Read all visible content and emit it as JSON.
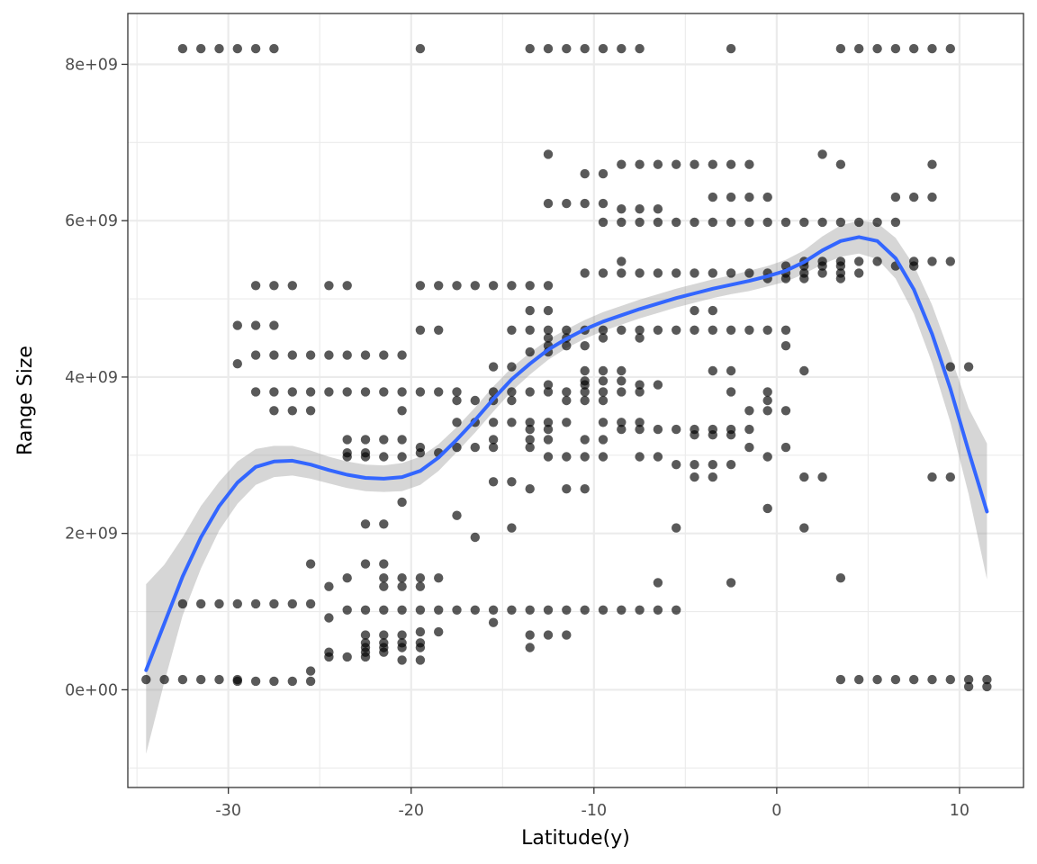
{
  "chart_data": {
    "type": "scatter",
    "title": "",
    "xlabel": "Latitude(y)",
    "ylabel": "Range Size",
    "xlim": [
      -35.5,
      13.5
    ],
    "ylim": [
      -1250000000.0,
      8650000000.0
    ],
    "x_ticks": [
      -30,
      -20,
      -10,
      0,
      10
    ],
    "x_tick_labels": [
      "-30",
      "-20",
      "-10",
      "0",
      "10"
    ],
    "y_ticks": [
      0,
      2000000000,
      4000000000,
      6000000000,
      8000000000
    ],
    "y_tick_labels": [
      "0e+00",
      "2e+09",
      "4e+09",
      "6e+09",
      "8e+09"
    ],
    "x_minor_ticks": [
      -35,
      -25,
      -15,
      -5,
      5
    ],
    "y_minor_ticks": [
      -1000000000,
      1000000000,
      3000000000,
      5000000000,
      7000000000
    ],
    "grid": true,
    "legend": "none",
    "colors": {
      "points": "#000000",
      "smooth_line": "#3366ff",
      "ribbon": "#999999",
      "grid": "#ebebeb",
      "panel_border": "#333333"
    },
    "point_rows": [
      {
        "y": 8200000000.0,
        "x": [
          -32.5,
          -31.5,
          -30.5,
          -29.5,
          -28.5,
          -27.5,
          -19.5,
          -13.5,
          -12.5,
          -11.5,
          -10.5,
          -9.5,
          -8.5,
          -7.5,
          -2.5,
          3.5,
          4.5,
          5.5,
          6.5,
          7.5,
          8.5,
          9.5
        ]
      },
      {
        "y": 6850000000.0,
        "x": [
          -12.5,
          2.5
        ]
      },
      {
        "y": 6720000000.0,
        "x": [
          -8.5,
          -7.5,
          -6.5,
          -5.5,
          -4.5,
          -3.5,
          -2.5,
          -1.5,
          3.5,
          8.5
        ]
      },
      {
        "y": 6600000000.0,
        "x": [
          -10.5,
          -9.5
        ]
      },
      {
        "y": 6300000000.0,
        "x": [
          -3.5,
          -2.5,
          -1.5,
          -0.5,
          6.5,
          7.5,
          8.5
        ]
      },
      {
        "y": 6220000000.0,
        "x": [
          -12.5,
          -11.5,
          -10.5,
          -9.5
        ]
      },
      {
        "y": 6150000000.0,
        "x": [
          -8.5,
          -7.5,
          -6.5
        ]
      },
      {
        "y": 5980000000.0,
        "x": [
          -9.5,
          -8.5,
          -7.5,
          -6.5,
          -5.5,
          -4.5,
          -3.5,
          -2.5,
          -1.5,
          -0.5,
          0.5,
          1.5,
          2.5,
          3.5,
          4.5,
          5.5,
          6.5
        ]
      },
      {
        "y": 5480000000.0,
        "x": [
          -8.5,
          1.5,
          2.5,
          3.5,
          4.5,
          5.5,
          7.5,
          8.5,
          9.5
        ]
      },
      {
        "y": 5420000000.0,
        "x": [
          0.5,
          1.5,
          2.5,
          3.5,
          6.5,
          7.5
        ]
      },
      {
        "y": 5330000000.0,
        "x": [
          -10.5,
          -9.5,
          -8.5,
          -7.5,
          -6.5,
          -5.5,
          -4.5,
          -3.5,
          -2.5,
          -1.5,
          -0.5,
          0.5,
          1.5,
          2.5,
          3.5,
          4.5
        ]
      },
      {
        "y": 5260000000.0,
        "x": [
          -0.5,
          0.5,
          1.5,
          3.5
        ]
      },
      {
        "y": 5170000000.0,
        "x": [
          -28.5,
          -27.5,
          -26.5,
          -24.5,
          -23.5,
          -19.5,
          -18.5,
          -17.5,
          -16.5,
          -15.5,
          -14.5,
          -13.5,
          -12.5
        ]
      },
      {
        "y": 4850000000.0,
        "x": [
          -13.5,
          -12.5,
          -4.5,
          -3.5
        ]
      },
      {
        "y": 4660000000.0,
        "x": [
          -29.5,
          -28.5,
          -27.5
        ]
      },
      {
        "y": 4600000000.0,
        "x": [
          -19.5,
          -18.5,
          -14.5,
          -13.5,
          -12.5,
          -11.5,
          -10.5,
          -9.5,
          -8.5,
          -7.5,
          -6.5,
          -5.5,
          -4.5,
          -3.5,
          -2.5,
          -1.5,
          -0.5,
          0.5
        ]
      },
      {
        "y": 4500000000.0,
        "x": [
          -12.5,
          -11.5,
          -9.5,
          -7.5
        ]
      },
      {
        "y": 4400000000.0,
        "x": [
          -12.5,
          -11.5,
          -10.5,
          0.5
        ]
      },
      {
        "y": 4320000000.0,
        "x": [
          -13.5,
          -12.5
        ]
      },
      {
        "y": 4280000000.0,
        "x": [
          -28.5,
          -27.5,
          -26.5,
          -25.5,
          -24.5,
          -23.5,
          -22.5,
          -21.5,
          -20.5
        ]
      },
      {
        "y": 4170000000.0,
        "x": [
          -29.5
        ]
      },
      {
        "y": 4130000000.0,
        "x": [
          -15.5,
          -14.5,
          9.5,
          10.5
        ]
      },
      {
        "y": 4080000000.0,
        "x": [
          -10.5,
          -9.5,
          -8.5,
          -3.5,
          -2.5,
          1.5
        ]
      },
      {
        "y": 3950000000.0,
        "x": [
          -10.5,
          -9.5,
          -8.5
        ]
      },
      {
        "y": 3900000000.0,
        "x": [
          -12.5,
          -10.5,
          -7.5,
          -6.5
        ]
      },
      {
        "y": 3810000000.0,
        "x": [
          -28.5,
          -27.5,
          -26.5,
          -25.5,
          -24.5,
          -23.5,
          -22.5,
          -21.5,
          -20.5,
          -19.5,
          -18.5,
          -17.5,
          -15.5,
          -14.5,
          -13.5,
          -12.5,
          -11.5,
          -10.5,
          -9.5,
          -8.5,
          -7.5,
          -2.5,
          -0.5
        ]
      },
      {
        "y": 3700000000.0,
        "x": [
          -17.5,
          -16.5,
          -15.5,
          -14.5,
          -11.5,
          -10.5,
          -9.5,
          -0.5
        ]
      },
      {
        "y": 3570000000.0,
        "x": [
          -27.5,
          -26.5,
          -25.5,
          -20.5,
          -1.5,
          -0.5,
          0.5
        ]
      },
      {
        "y": 3420000000.0,
        "x": [
          -17.5,
          -16.5,
          -15.5,
          -14.5,
          -13.5,
          -12.5,
          -11.5,
          -9.5,
          -8.5,
          -7.5
        ]
      },
      {
        "y": 3330000000.0,
        "x": [
          -13.5,
          -12.5,
          -8.5,
          -7.5,
          -6.5,
          -5.5,
          -4.5,
          -3.5,
          -2.5,
          -1.5
        ]
      },
      {
        "y": 3260000000.0,
        "x": [
          -4.5,
          -3.5,
          -2.5
        ]
      },
      {
        "y": 3200000000.0,
        "x": [
          -23.5,
          -22.5,
          -21.5,
          -20.5,
          -15.5,
          -13.5,
          -12.5,
          -10.5,
          -9.5
        ]
      },
      {
        "y": 3100000000.0,
        "x": [
          -19.5,
          -17.5,
          -16.5,
          -15.5,
          -13.5,
          -1.5,
          0.5
        ]
      },
      {
        "y": 3030000000.0,
        "x": [
          -23.5,
          -22.5,
          -19.5,
          -18.5
        ]
      },
      {
        "y": 2980000000.0,
        "x": [
          -23.5,
          -22.5,
          -21.5,
          -20.5,
          -12.5,
          -11.5,
          -10.5,
          -9.5,
          -7.5,
          -6.5,
          -0.5
        ]
      },
      {
        "y": 2880000000.0,
        "x": [
          -5.5,
          -4.5,
          -3.5,
          -2.5
        ]
      },
      {
        "y": 2720000000.0,
        "x": [
          -4.5,
          -3.5,
          1.5,
          2.5,
          8.5,
          9.5
        ]
      },
      {
        "y": 2660000000.0,
        "x": [
          -15.5,
          -14.5
        ]
      },
      {
        "y": 2570000000.0,
        "x": [
          -13.5,
          -11.5,
          -10.5
        ]
      },
      {
        "y": 2400000000.0,
        "x": [
          -20.5
        ]
      },
      {
        "y": 2320000000.0,
        "x": [
          -0.5
        ]
      },
      {
        "y": 2230000000.0,
        "x": [
          -17.5
        ]
      },
      {
        "y": 2120000000.0,
        "x": [
          -22.5,
          -21.5
        ]
      },
      {
        "y": 2070000000.0,
        "x": [
          -14.5,
          -5.5,
          1.5
        ]
      },
      {
        "y": 1950000000.0,
        "x": [
          -16.5
        ]
      },
      {
        "y": 1610000000.0,
        "x": [
          -25.5,
          -22.5,
          -21.5
        ]
      },
      {
        "y": 1430000000.0,
        "x": [
          -23.5,
          -21.5,
          -20.5,
          -19.5,
          -18.5,
          3.5
        ]
      },
      {
        "y": 1370000000.0,
        "x": [
          -6.5,
          -2.5
        ]
      },
      {
        "y": 1320000000.0,
        "x": [
          -24.5,
          -21.5,
          -20.5,
          -19.5
        ]
      },
      {
        "y": 1100000000.0,
        "x": [
          -32.5,
          -31.5,
          -30.5,
          -29.5,
          -28.5,
          -27.5,
          -26.5,
          -25.5
        ]
      },
      {
        "y": 1020000000.0,
        "x": [
          -23.5,
          -22.5,
          -21.5,
          -20.5,
          -19.5,
          -18.5,
          -17.5,
          -16.5,
          -15.5,
          -14.5,
          -13.5,
          -12.5,
          -11.5,
          -10.5,
          -9.5,
          -8.5,
          -7.5,
          -6.5,
          -5.5
        ]
      },
      {
        "y": 920000000.0,
        "x": [
          -24.5
        ]
      },
      {
        "y": 860000000.0,
        "x": [
          -15.5
        ]
      },
      {
        "y": 740000000.0,
        "x": [
          -19.5,
          -18.5
        ]
      },
      {
        "y": 700000000.0,
        "x": [
          -22.5,
          -21.5,
          -20.5,
          -13.5,
          -12.5,
          -11.5
        ]
      },
      {
        "y": 600000000.0,
        "x": [
          -22.5,
          -21.5,
          -20.5,
          -19.5
        ]
      },
      {
        "y": 540000000.0,
        "x": [
          -22.5,
          -21.5,
          -20.5,
          -19.5,
          -13.5
        ]
      },
      {
        "y": 480000000.0,
        "x": [
          -24.5,
          -22.5,
          -21.5
        ]
      },
      {
        "y": 420000000.0,
        "x": [
          -24.5,
          -23.5,
          -22.5
        ]
      },
      {
        "y": 380000000.0,
        "x": [
          -20.5,
          -19.5
        ]
      },
      {
        "y": 240000000.0,
        "x": [
          -25.5
        ]
      },
      {
        "y": 130000000.0,
        "x": [
          -34.5,
          -33.5,
          -32.5,
          -31.5,
          -30.5,
          -29.5,
          3.5,
          4.5,
          5.5,
          6.5,
          7.5,
          8.5,
          9.5,
          10.5,
          11.5
        ]
      },
      {
        "y": 110000000.0,
        "x": [
          -29.5,
          -28.5,
          -27.5,
          -26.5,
          -25.5
        ]
      },
      {
        "y": 40000000.0,
        "x": [
          10.5,
          11.5
        ]
      }
    ],
    "smooth_curve": [
      [
        -34.5,
        250000000.0
      ],
      [
        -33.5,
        850000000.0
      ],
      [
        -32.5,
        1450000000.0
      ],
      [
        -31.5,
        1950000000.0
      ],
      [
        -30.5,
        2350000000.0
      ],
      [
        -29.5,
        2650000000.0
      ],
      [
        -28.5,
        2850000000.0
      ],
      [
        -27.5,
        2920000000.0
      ],
      [
        -26.5,
        2930000000.0
      ],
      [
        -25.5,
        2880000000.0
      ],
      [
        -24.5,
        2810000000.0
      ],
      [
        -23.5,
        2750000000.0
      ],
      [
        -22.5,
        2710000000.0
      ],
      [
        -21.5,
        2700000000.0
      ],
      [
        -20.5,
        2720000000.0
      ],
      [
        -19.5,
        2800000000.0
      ],
      [
        -18.5,
        2970000000.0
      ],
      [
        -17.5,
        3200000000.0
      ],
      [
        -16.5,
        3450000000.0
      ],
      [
        -15.5,
        3720000000.0
      ],
      [
        -14.5,
        3970000000.0
      ],
      [
        -13.5,
        4170000000.0
      ],
      [
        -12.5,
        4350000000.0
      ],
      [
        -11.5,
        4490000000.0
      ],
      [
        -10.5,
        4610000000.0
      ],
      [
        -9.5,
        4710000000.0
      ],
      [
        -8.5,
        4790000000.0
      ],
      [
        -7.5,
        4870000000.0
      ],
      [
        -6.5,
        4940000000.0
      ],
      [
        -5.5,
        5010000000.0
      ],
      [
        -4.5,
        5070000000.0
      ],
      [
        -3.5,
        5130000000.0
      ],
      [
        -2.5,
        5180000000.0
      ],
      [
        -1.5,
        5230000000.0
      ],
      [
        -0.5,
        5290000000.0
      ],
      [
        0.5,
        5360000000.0
      ],
      [
        1.5,
        5470000000.0
      ],
      [
        2.5,
        5620000000.0
      ],
      [
        3.5,
        5740000000.0
      ],
      [
        4.5,
        5790000000.0
      ],
      [
        5.5,
        5740000000.0
      ],
      [
        6.5,
        5520000000.0
      ],
      [
        7.5,
        5120000000.0
      ],
      [
        8.5,
        4550000000.0
      ],
      [
        9.5,
        3850000000.0
      ],
      [
        10.5,
        3050000000.0
      ],
      [
        11.5,
        2280000000.0
      ]
    ],
    "ribbon_upper": [
      [
        -34.5,
        1350000000.0
      ],
      [
        -33.5,
        1600000000.0
      ],
      [
        -32.5,
        1950000000.0
      ],
      [
        -31.5,
        2350000000.0
      ],
      [
        -30.5,
        2660000000.0
      ],
      [
        -29.5,
        2920000000.0
      ],
      [
        -28.5,
        3080000000.0
      ],
      [
        -27.5,
        3120000000.0
      ],
      [
        -26.5,
        3120000000.0
      ],
      [
        -25.5,
        3060000000.0
      ],
      [
        -24.5,
        2980000000.0
      ],
      [
        -23.5,
        2920000000.0
      ],
      [
        -22.5,
        2880000000.0
      ],
      [
        -21.5,
        2870000000.0
      ],
      [
        -20.5,
        2900000000.0
      ],
      [
        -19.5,
        2980000000.0
      ],
      [
        -18.5,
        3140000000.0
      ],
      [
        -17.5,
        3360000000.0
      ],
      [
        -16.5,
        3610000000.0
      ],
      [
        -15.5,
        3880000000.0
      ],
      [
        -14.5,
        4120000000.0
      ],
      [
        -13.5,
        4310000000.0
      ],
      [
        -12.5,
        4480000000.0
      ],
      [
        -11.5,
        4610000000.0
      ],
      [
        -10.5,
        4730000000.0
      ],
      [
        -9.5,
        4830000000.0
      ],
      [
        -8.5,
        4910000000.0
      ],
      [
        -7.5,
        4990000000.0
      ],
      [
        -6.5,
        5060000000.0
      ],
      [
        -5.5,
        5130000000.0
      ],
      [
        -4.5,
        5190000000.0
      ],
      [
        -3.5,
        5250000000.0
      ],
      [
        -2.5,
        5300000000.0
      ],
      [
        -1.5,
        5360000000.0
      ],
      [
        -0.5,
        5420000000.0
      ],
      [
        0.5,
        5500000000.0
      ],
      [
        1.5,
        5620000000.0
      ],
      [
        2.5,
        5800000000.0
      ],
      [
        3.5,
        5940000000.0
      ],
      [
        4.5,
        6000000000.0
      ],
      [
        5.5,
        5970000000.0
      ],
      [
        6.5,
        5780000000.0
      ],
      [
        7.5,
        5430000000.0
      ],
      [
        8.5,
        4920000000.0
      ],
      [
        9.5,
        4280000000.0
      ],
      [
        10.5,
        3600000000.0
      ],
      [
        11.5,
        3150000000.0
      ]
    ],
    "ribbon_lower": [
      [
        -34.5,
        -820000000.0
      ],
      [
        -33.5,
        100000000.0
      ],
      [
        -32.5,
        950000000.0
      ],
      [
        -31.5,
        1550000000.0
      ],
      [
        -30.5,
        2040000000.0
      ],
      [
        -29.5,
        2380000000.0
      ],
      [
        -28.5,
        2620000000.0
      ],
      [
        -27.5,
        2720000000.0
      ],
      [
        -26.5,
        2740000000.0
      ],
      [
        -25.5,
        2700000000.0
      ],
      [
        -24.5,
        2640000000.0
      ],
      [
        -23.5,
        2580000000.0
      ],
      [
        -22.5,
        2540000000.0
      ],
      [
        -21.5,
        2530000000.0
      ],
      [
        -20.5,
        2540000000.0
      ],
      [
        -19.5,
        2620000000.0
      ],
      [
        -18.5,
        2800000000.0
      ],
      [
        -17.5,
        3040000000.0
      ],
      [
        -16.5,
        3290000000.0
      ],
      [
        -15.5,
        3560000000.0
      ],
      [
        -14.5,
        3820000000.0
      ],
      [
        -13.5,
        4030000000.0
      ],
      [
        -12.5,
        4220000000.0
      ],
      [
        -11.5,
        4370000000.0
      ],
      [
        -10.5,
        4490000000.0
      ],
      [
        -9.5,
        4590000000.0
      ],
      [
        -8.5,
        4670000000.0
      ],
      [
        -7.5,
        4750000000.0
      ],
      [
        -6.5,
        4820000000.0
      ],
      [
        -5.5,
        4890000000.0
      ],
      [
        -4.5,
        4950000000.0
      ],
      [
        -3.5,
        5010000000.0
      ],
      [
        -2.5,
        5060000000.0
      ],
      [
        -1.5,
        5100000000.0
      ],
      [
        -0.5,
        5160000000.0
      ],
      [
        0.5,
        5220000000.0
      ],
      [
        1.5,
        5320000000.0
      ],
      [
        2.5,
        5440000000.0
      ],
      [
        3.5,
        5540000000.0
      ],
      [
        4.5,
        5580000000.0
      ],
      [
        5.5,
        5510000000.0
      ],
      [
        6.5,
        5260000000.0
      ],
      [
        7.5,
        4810000000.0
      ],
      [
        8.5,
        4180000000.0
      ],
      [
        9.5,
        3420000000.0
      ],
      [
        10.5,
        2500000000.0
      ],
      [
        11.5,
        1410000000.0
      ]
    ]
  }
}
